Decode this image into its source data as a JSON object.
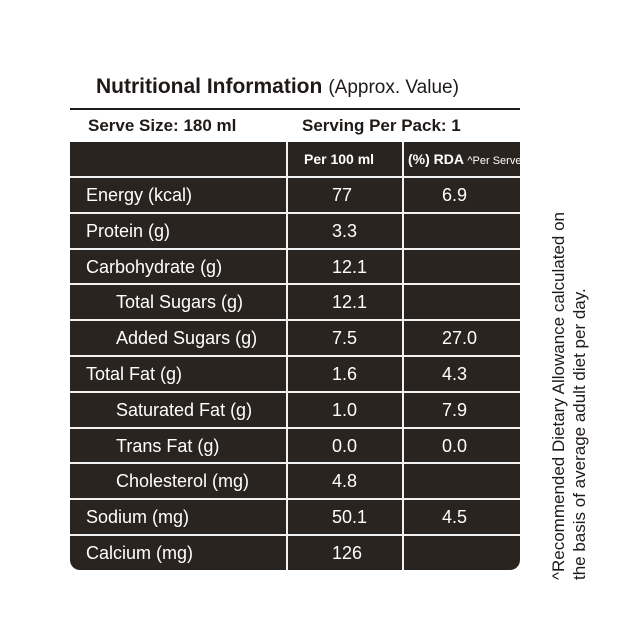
{
  "title": {
    "main": "Nutritional Information",
    "sub": "(Approx. Value)"
  },
  "serve": {
    "size": "Serve Size: 180 ml",
    "per_pack": "Serving Per Pack: 1"
  },
  "header": {
    "per100": "Per 100 ml",
    "rda": "(%) RDA",
    "rda_suffix": "^Per Serve"
  },
  "rows": [
    {
      "name": "Energy (kcal)",
      "per100": "77",
      "rda": "6.9",
      "indent": false
    },
    {
      "name": "Protein (g)",
      "per100": "3.3",
      "rda": "",
      "indent": false
    },
    {
      "name": "Carbohydrate (g)",
      "per100": "12.1",
      "rda": "",
      "indent": false
    },
    {
      "name": "Total Sugars (g)",
      "per100": "12.1",
      "rda": "",
      "indent": true
    },
    {
      "name": "Added Sugars (g)",
      "per100": "7.5",
      "rda": "27.0",
      "indent": true
    },
    {
      "name": "Total Fat (g)",
      "per100": "1.6",
      "rda": "4.3",
      "indent": false
    },
    {
      "name": "Saturated Fat (g)",
      "per100": "1.0",
      "rda": "7.9",
      "indent": true
    },
    {
      "name": "Trans Fat (g)",
      "per100": "0.0",
      "rda": "0.0",
      "indent": true
    },
    {
      "name": "Cholesterol (mg)",
      "per100": "4.8",
      "rda": "",
      "indent": true
    },
    {
      "name": "Sodium (mg)",
      "per100": "50.1",
      "rda": "4.5",
      "indent": false
    },
    {
      "name": "Calcium (mg)",
      "per100": "126",
      "rda": "",
      "indent": false
    }
  ],
  "footnote": {
    "line1": "^Recommended Dietary Allowance calculated on",
    "line2": "the basis of average adult diet per day."
  }
}
